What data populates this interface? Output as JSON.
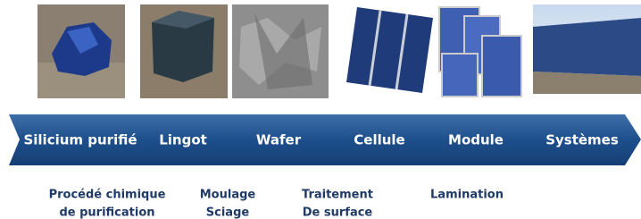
{
  "stages": [
    "Silicium purifié",
    "Lingot",
    "Wafer",
    "Cellule",
    "Module",
    "Systèmes"
  ],
  "processes": [
    [
      "Procédé chimique",
      "de purification"
    ],
    [
      "Moulage",
      "Sciage"
    ],
    [
      "Traitement",
      "De surface"
    ],
    [
      "Lamination"
    ]
  ]
}
